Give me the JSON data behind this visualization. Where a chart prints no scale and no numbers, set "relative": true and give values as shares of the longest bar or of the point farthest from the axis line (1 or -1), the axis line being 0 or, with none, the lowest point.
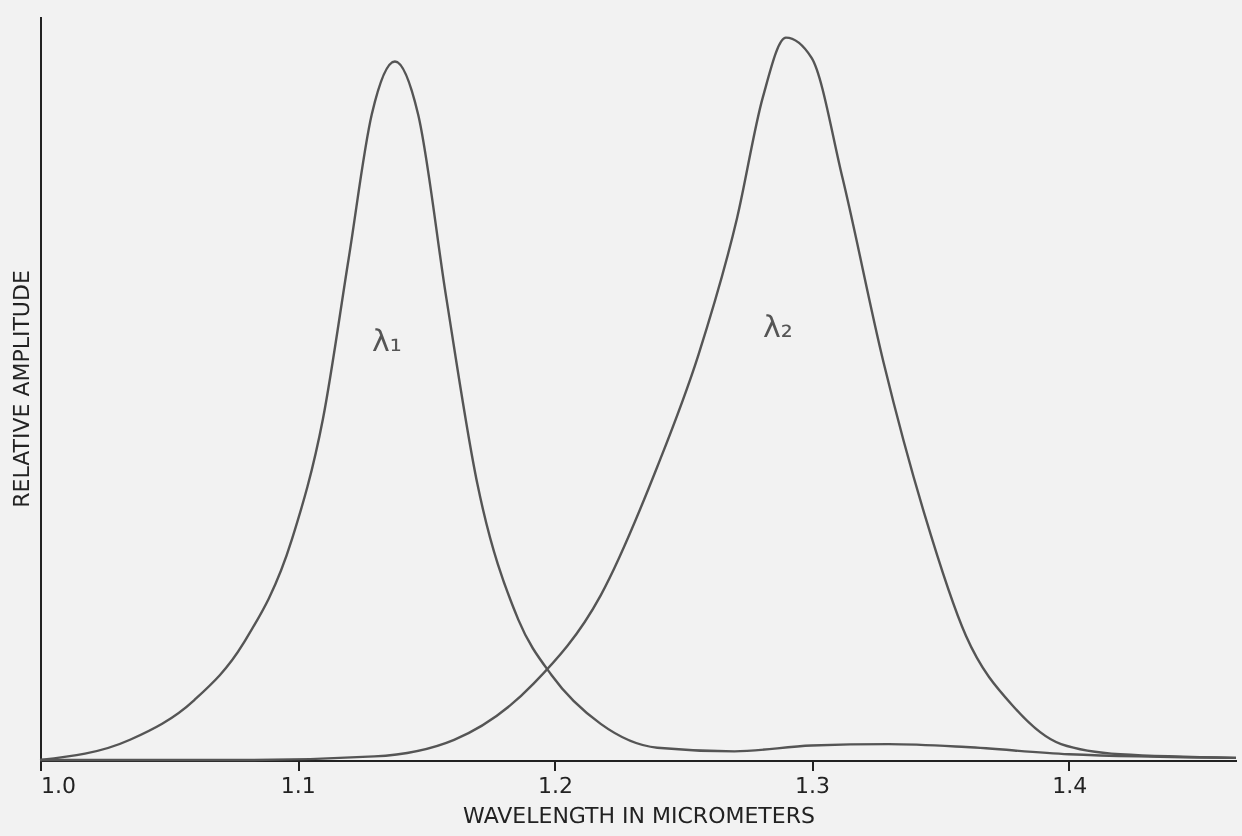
{
  "chart_data": {
    "type": "line",
    "relative": true,
    "xlabel": "WAVELENGTH IN MICROMETERS",
    "ylabel": "RELATIVE AMPLITUDE",
    "xlim": [
      1.0,
      1.465
    ],
    "xticks": [
      {
        "value": 1.0,
        "label": "1.0"
      },
      1.1,
      1.2,
      1.3,
      1.4
    ],
    "grid": false,
    "marker": "none",
    "line_style": "solid",
    "series": [
      {
        "name": "λ₁",
        "color": "#555555",
        "x": [
          1.0,
          1.035,
          1.06,
          1.079,
          1.098,
          1.11,
          1.12,
          1.129,
          1.138,
          1.147,
          1.158,
          1.17,
          1.186,
          1.199,
          1.218,
          1.24,
          1.27,
          1.3,
          1.33,
          1.36,
          1.4,
          1.465
        ],
        "values": [
          0,
          0.028,
          0.083,
          0.161,
          0.306,
          0.472,
          0.694,
          0.894,
          0.967,
          0.894,
          0.639,
          0.383,
          0.194,
          0.117,
          0.05,
          0.017,
          0.012,
          0.02,
          0.022,
          0.018,
          0.008,
          0.003
        ]
      },
      {
        "name": "λ₂",
        "color": "#555555",
        "x": [
          1.0,
          1.08,
          1.13,
          1.161,
          1.192,
          1.218,
          1.24,
          1.256,
          1.271,
          1.281,
          1.29,
          1.3,
          1.312,
          1.328,
          1.344,
          1.36,
          1.379,
          1.397,
          1.42,
          1.465
        ],
        "values": [
          0,
          0,
          0.005,
          0.028,
          0.106,
          0.228,
          0.406,
          0.561,
          0.75,
          0.917,
          1.0,
          0.972,
          0.806,
          0.55,
          0.339,
          0.172,
          0.072,
          0.022,
          0.008,
          0.003
        ]
      }
    ]
  }
}
